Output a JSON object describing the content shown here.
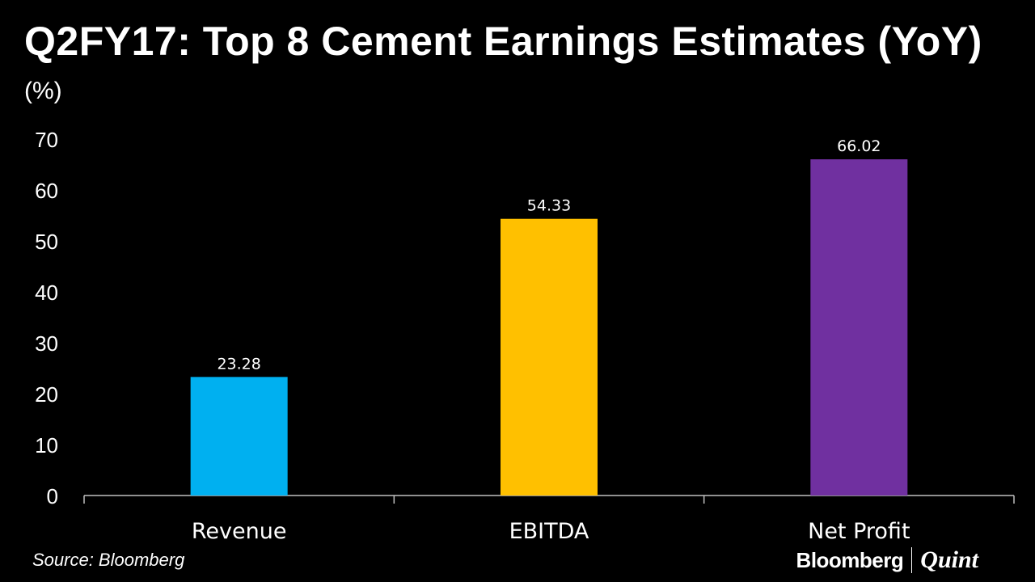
{
  "header": {
    "title": "Q2FY17: Top 8 Cement Earnings Estimates (YoY)",
    "unit": "(%)"
  },
  "footer": {
    "source": "Source: Bloomberg",
    "brand_primary": "Bloomberg",
    "brand_secondary": "Quint"
  },
  "chart_data": {
    "type": "bar",
    "title": "Q2FY17: Top 8 Cement Earnings Estimates (YoY)",
    "ylabel": "(%)",
    "xlabel": "",
    "categories": [
      "Revenue",
      "EBITDA",
      "Net Profit"
    ],
    "values": [
      23.28,
      54.33,
      66.02
    ],
    "value_labels": [
      "23.28",
      "54.33",
      "66.02"
    ],
    "colors": [
      "#00B0F0",
      "#FFC000",
      "#7030A0"
    ],
    "ylim": [
      0,
      70
    ],
    "yticks": [
      0,
      10,
      20,
      30,
      40,
      50,
      60,
      70
    ],
    "grid": false,
    "legend": "none"
  }
}
